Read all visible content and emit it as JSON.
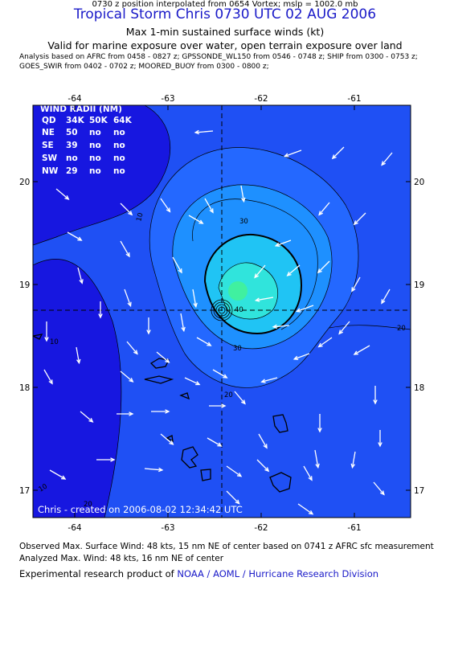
{
  "header": {
    "title": "Tropical Storm Chris 0730 UTC 02 AUG 2006",
    "subtitle": "Max 1-min sustained surface winds (kt)",
    "valid": "Valid for marine exposure over water, open terrain exposure over land",
    "analysis_line1": "Analysis based on  AFRC from 0458 - 0827 z;  GPSSONDE_WL150 from 0546 - 0748 z;  SHIP from 0300 - 0753 z;",
    "analysis_line2": "GOES_SWIR from 0402 - 0702 z;  MOORED_BUOY from 0300 - 0800 z;",
    "position": "0730 z position interpolated from 0654 Vortex; mslp = 1002.0 mb"
  },
  "map": {
    "lon_labels": [
      "-64",
      "-63",
      "-62",
      "-61"
    ],
    "lat_labels": [
      "20",
      "19",
      "18",
      "17"
    ],
    "contour_labels": [
      "10",
      "20",
      "30",
      "20",
      "20",
      "30",
      "40",
      "10",
      "10"
    ],
    "wind_radii": {
      "title": "WIND RADII (NM)",
      "columns": [
        "QD",
        "34K",
        "50K",
        "64K"
      ],
      "rows": [
        [
          "NE",
          "50",
          "no",
          "no"
        ],
        [
          "SE",
          "39",
          "no",
          "no"
        ],
        [
          "SW",
          "no",
          "no",
          "no"
        ],
        [
          "NW",
          "29",
          "no",
          "no"
        ]
      ]
    },
    "credit": "Chris - created on 2006-08-02 12:34:42 UTC",
    "colors": {
      "dark_blue": "#1717e0",
      "blue": "#1f50f4",
      "mid_blue": "#2468ff",
      "light_blue": "#1e90ff",
      "cyan": "#20c4f4",
      "aqua": "#30e4dc",
      "green": "#40f0a0",
      "land": "#000000",
      "arrow": "#ffffff"
    }
  },
  "footer": {
    "observed": "Observed Max. Surface Wind: 48 kts, 15 nm NE of center based on 0741 z AFRC sfc measurement",
    "analyzed": "Analyzed Max. Wind: 48 kts, 16 nm NE of center",
    "product_prefix": "Experimental research product of ",
    "product_org": "NOAA / AOML / Hurricane Research Division"
  }
}
